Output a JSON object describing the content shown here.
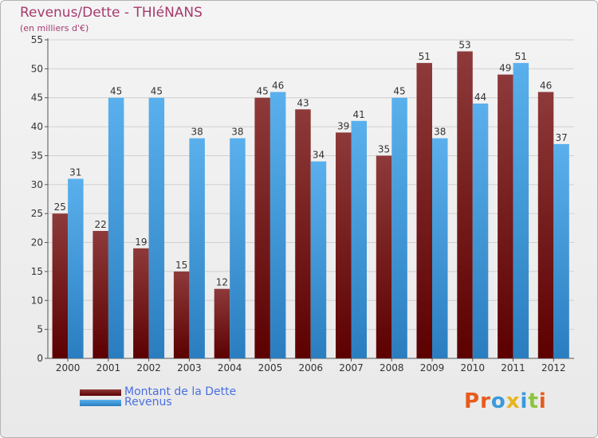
{
  "chart_data": {
    "type": "bar",
    "title": "Revenus/Dette - THIéNANS",
    "subtitle": "(en milliers d'€)",
    "categories": [
      "2000",
      "2001",
      "2002",
      "2003",
      "2004",
      "2005",
      "2006",
      "2007",
      "2008",
      "2009",
      "2010",
      "2011",
      "2012"
    ],
    "series": [
      {
        "name": "Montant de la Dette",
        "color": "#7a1e24",
        "values": [
          25,
          22,
          19,
          15,
          12,
          45,
          43,
          39,
          35,
          51,
          53,
          49,
          46
        ]
      },
      {
        "name": "Revenus",
        "color": "#4aa3e0",
        "values": [
          31,
          45,
          45,
          38,
          38,
          46,
          34,
          41,
          45,
          38,
          44,
          51,
          37
        ]
      }
    ],
    "ylim": [
      0,
      55
    ],
    "yticks": [
      0,
      5,
      10,
      15,
      20,
      25,
      30,
      35,
      40,
      45,
      50,
      55
    ],
    "grid": true,
    "legend_position": "bottom-left"
  },
  "logo": {
    "text": "Proxiti",
    "colors": [
      "#e85a1c",
      "#e85a1c",
      "#3a9ad9",
      "#e8b41c",
      "#3a9ad9",
      "#8cc43c",
      "#e85a1c"
    ]
  }
}
